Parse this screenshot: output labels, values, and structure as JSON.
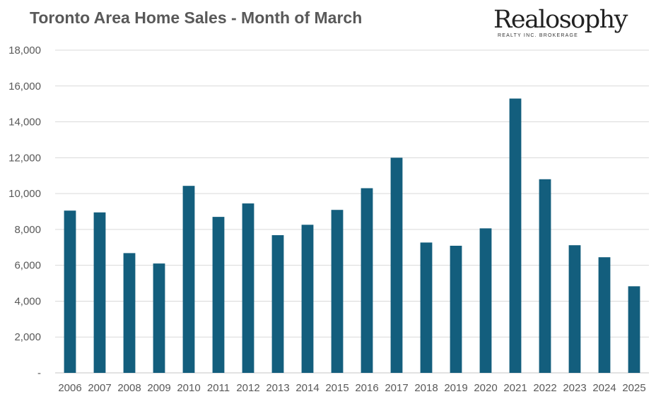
{
  "chart_data": {
    "type": "bar",
    "title": "Toronto Area Home Sales - Month of March",
    "xlabel": "",
    "ylabel": "",
    "categories": [
      "2006",
      "2007",
      "2008",
      "2009",
      "2010",
      "2011",
      "2012",
      "2013",
      "2014",
      "2015",
      "2016",
      "2017",
      "2018",
      "2019",
      "2020",
      "2021",
      "2022",
      "2023",
      "2024",
      "2025"
    ],
    "values": [
      9050,
      8950,
      6680,
      6100,
      10430,
      8700,
      9450,
      7680,
      8260,
      9090,
      10300,
      12000,
      7270,
      7090,
      8060,
      15300,
      10800,
      7120,
      6450,
      4830
    ],
    "ylim": [
      0,
      18000
    ],
    "yticks": [
      0,
      2000,
      4000,
      6000,
      8000,
      10000,
      12000,
      14000,
      16000,
      18000
    ],
    "ytick_labels": [
      "-",
      "2,000",
      "4,000",
      "6,000",
      "8,000",
      "10,000",
      "12,000",
      "14,000",
      "16,000",
      "18,000"
    ],
    "grid": true,
    "bar_color": "#135e7d",
    "grid_color": "#d9d9d9"
  },
  "logo": {
    "name": "Realosophy",
    "subtitle": "REALTY INC. BROKERAGE"
  }
}
